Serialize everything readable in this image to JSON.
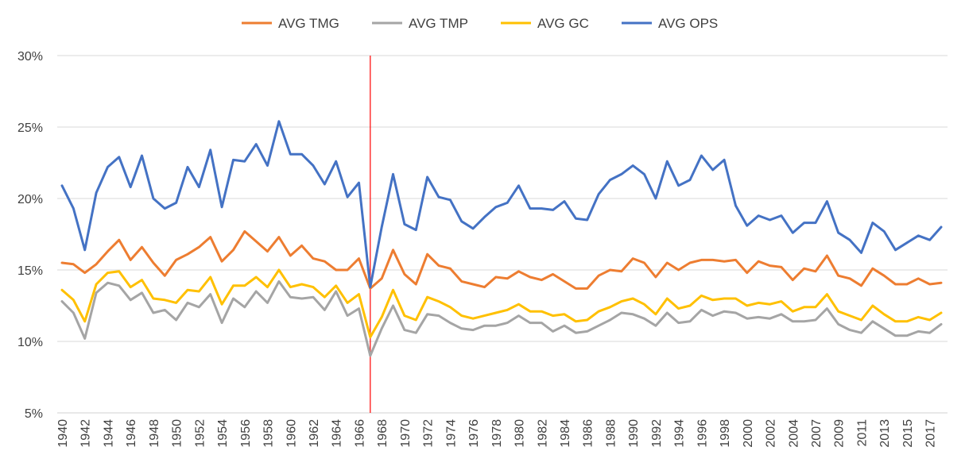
{
  "chart_data": {
    "type": "line",
    "title": "",
    "xlabel": "",
    "ylabel": "",
    "ylim": [
      5,
      30
    ],
    "y_ticks": [
      "5%",
      "10%",
      "15%",
      "20%",
      "25%",
      "30%"
    ],
    "y_tick_values": [
      5,
      10,
      15,
      20,
      25,
      30
    ],
    "grid": "horizontal",
    "legend_position": "top",
    "marker_line": {
      "x": "1967",
      "color": "#ff0000"
    },
    "x_tick_labels": [
      "1940",
      "1942",
      "1944",
      "1946",
      "1948",
      "1950",
      "1952",
      "1954",
      "1956",
      "1958",
      "1960",
      "1962",
      "1964",
      "1966",
      "1968",
      "1970",
      "1972",
      "1974",
      "1976",
      "1978",
      "1980",
      "1982",
      "1984",
      "1986",
      "1988",
      "1990",
      "1992",
      "1994",
      "1996",
      "1998",
      "2000",
      "2002",
      "2004",
      "2007",
      "2009",
      "2011",
      "2013",
      "2015",
      "2017"
    ],
    "x": [
      "1940",
      "1941",
      "1942",
      "1943",
      "1944",
      "1945",
      "1946",
      "1947",
      "1948",
      "1949",
      "1950",
      "1951",
      "1952",
      "1953",
      "1954",
      "1955",
      "1956",
      "1957",
      "1958",
      "1959",
      "1960",
      "1961",
      "1962",
      "1963",
      "1964",
      "1965",
      "1966",
      "1967",
      "1968",
      "1969",
      "1970",
      "1971",
      "1972",
      "1973",
      "1974",
      "1975",
      "1976",
      "1977",
      "1978",
      "1979",
      "1980",
      "1981",
      "1982",
      "1983",
      "1984",
      "1985",
      "1986",
      "1987",
      "1988",
      "1989",
      "1990",
      "1991",
      "1992",
      "1993",
      "1994",
      "1995",
      "1996",
      "1997",
      "1998",
      "1999",
      "2000",
      "2001",
      "2002",
      "2003",
      "2004",
      "2005",
      "2007",
      "2008",
      "2009",
      "2010",
      "2011",
      "2012",
      "2013",
      "2014",
      "2015",
      "2016",
      "2017",
      "2018"
    ],
    "series": [
      {
        "name": "AVG TMG",
        "color": "#ED7D31",
        "values": [
          15.5,
          15.4,
          14.8,
          15.4,
          16.3,
          17.1,
          15.7,
          16.6,
          15.5,
          14.6,
          15.7,
          16.1,
          16.6,
          17.3,
          15.6,
          16.4,
          17.7,
          17.0,
          16.3,
          17.3,
          16.0,
          16.7,
          15.8,
          15.6,
          15.0,
          15.0,
          15.8,
          13.7,
          14.4,
          16.4,
          14.7,
          14.0,
          16.1,
          15.3,
          15.1,
          14.2,
          14.0,
          13.8,
          14.5,
          14.4,
          14.9,
          14.5,
          14.3,
          14.7,
          14.2,
          13.7,
          13.7,
          14.6,
          15.0,
          14.9,
          15.8,
          15.5,
          14.5,
          15.5,
          15.0,
          15.5,
          15.7,
          15.7,
          15.6,
          15.7,
          14.8,
          15.6,
          15.3,
          15.2,
          14.3,
          15.1,
          14.9,
          16.0,
          14.6,
          14.4,
          13.9,
          15.1,
          14.6,
          14.0,
          14.0,
          14.4,
          14.0,
          14.1
        ]
      },
      {
        "name": "AVG TMP",
        "color": "#A5A5A5",
        "values": [
          12.8,
          12.0,
          10.2,
          13.4,
          14.1,
          13.9,
          12.9,
          13.4,
          12.0,
          12.2,
          11.5,
          12.7,
          12.4,
          13.3,
          11.3,
          13.0,
          12.4,
          13.5,
          12.7,
          14.2,
          13.1,
          13.0,
          13.1,
          12.2,
          13.5,
          11.8,
          12.3,
          9.0,
          10.9,
          12.5,
          10.8,
          10.6,
          11.9,
          11.8,
          11.3,
          10.9,
          10.8,
          11.1,
          11.1,
          11.3,
          11.8,
          11.3,
          11.3,
          10.7,
          11.1,
          10.6,
          10.7,
          11.1,
          11.5,
          12.0,
          11.9,
          11.6,
          11.1,
          12.0,
          11.3,
          11.4,
          12.2,
          11.8,
          12.1,
          12.0,
          11.6,
          11.7,
          11.6,
          11.9,
          11.4,
          11.4,
          11.5,
          12.3,
          11.2,
          10.8,
          10.6,
          11.4,
          10.9,
          10.4,
          10.4,
          10.7,
          10.6,
          11.2
        ]
      },
      {
        "name": "AVG GC",
        "color": "#FFC000",
        "values": [
          13.6,
          12.9,
          11.4,
          14.0,
          14.8,
          14.9,
          13.8,
          14.3,
          13.0,
          12.9,
          12.7,
          13.6,
          13.5,
          14.5,
          12.6,
          13.9,
          13.9,
          14.5,
          13.8,
          15.0,
          13.8,
          14.0,
          13.8,
          13.1,
          13.9,
          12.7,
          13.3,
          10.3,
          11.7,
          13.6,
          11.8,
          11.5,
          13.1,
          12.8,
          12.4,
          11.8,
          11.6,
          11.8,
          12.0,
          12.2,
          12.6,
          12.1,
          12.1,
          11.8,
          11.9,
          11.4,
          11.5,
          12.1,
          12.4,
          12.8,
          13.0,
          12.6,
          11.9,
          13.0,
          12.3,
          12.5,
          13.2,
          12.9,
          13.0,
          13.0,
          12.5,
          12.7,
          12.6,
          12.8,
          12.1,
          12.4,
          12.4,
          13.3,
          12.1,
          11.8,
          11.5,
          12.5,
          11.9,
          11.4,
          11.4,
          11.7,
          11.5,
          12.0
        ]
      },
      {
        "name": "AVG OPS",
        "color": "#4472C4",
        "values": [
          20.9,
          19.3,
          16.4,
          20.4,
          22.2,
          22.9,
          20.8,
          23.0,
          20.0,
          19.3,
          19.7,
          22.2,
          20.8,
          23.4,
          19.4,
          22.7,
          22.6,
          23.8,
          22.3,
          25.4,
          23.1,
          23.1,
          22.3,
          21.0,
          22.6,
          20.1,
          21.1,
          13.8,
          18.0,
          21.7,
          18.2,
          17.8,
          21.5,
          20.1,
          19.9,
          18.4,
          17.9,
          18.7,
          19.4,
          19.7,
          20.9,
          19.3,
          19.3,
          19.2,
          19.8,
          18.6,
          18.5,
          20.3,
          21.3,
          21.7,
          22.3,
          21.7,
          20.0,
          22.6,
          20.9,
          21.3,
          23.0,
          22.0,
          22.7,
          19.5,
          18.1,
          18.8,
          18.5,
          18.8,
          17.6,
          18.3,
          18.3,
          19.8,
          17.6,
          17.1,
          16.2,
          18.3,
          17.7,
          16.4,
          16.9,
          17.4,
          17.1,
          18.0
        ]
      }
    ]
  }
}
